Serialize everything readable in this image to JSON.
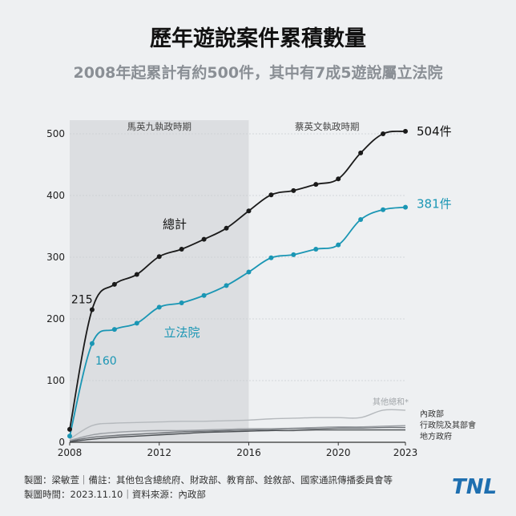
{
  "header": {
    "title": "歷年遊說案件累積數量",
    "subtitle": "2008年起累計有約500件，其中有7成5遊說屬立法院"
  },
  "footer": {
    "line1": "製圖：梁敏萱｜備註：其他包含總統府、財政部、教育部、銓敘部、國家通訊傳播委員會等",
    "line2": "製圖時間：2023.11.10｜資料來源：內政部"
  },
  "logo": {
    "text": "TNL",
    "color": "#1e6fb0"
  },
  "chart_data": {
    "type": "line",
    "x_ticks": [
      2008,
      2012,
      2016,
      2020,
      2023
    ],
    "xlim": [
      2008,
      2023
    ],
    "y_ticks": [
      0,
      100,
      200,
      300,
      400,
      500
    ],
    "ylim": [
      0,
      500
    ],
    "grid": true,
    "shaded_periods": [
      {
        "label": "馬英九執政時期",
        "x_range": [
          2008,
          2016
        ],
        "color": "#dcdee1"
      },
      {
        "label": "蔡英文執政時期",
        "x_range": [
          2016,
          2023
        ],
        "color": "#eef0f2"
      }
    ],
    "series": [
      {
        "name": "總計",
        "color": "#1a1a1a",
        "markers": true,
        "x": [
          2008,
          2009,
          2010,
          2011,
          2012,
          2013,
          2014,
          2015,
          2016,
          2017,
          2018,
          2019,
          2020,
          2021,
          2022,
          2023
        ],
        "values": [
          21,
          215,
          256,
          272,
          301,
          313,
          329,
          347,
          375,
          401,
          408,
          418,
          427,
          469,
          500,
          504
        ],
        "annotations": [
          {
            "text": "215",
            "x": 2009,
            "value": 215
          },
          {
            "text": "504件",
            "x": 2023,
            "value": 504
          }
        ]
      },
      {
        "name": "立法院",
        "color": "#1a96b4",
        "markers": true,
        "x": [
          2008,
          2009,
          2010,
          2011,
          2012,
          2013,
          2014,
          2015,
          2016,
          2017,
          2018,
          2019,
          2020,
          2021,
          2022,
          2023
        ],
        "values": [
          10,
          160,
          183,
          193,
          219,
          226,
          238,
          254,
          276,
          299,
          304,
          313,
          320,
          361,
          377,
          381
        ],
        "annotations": [
          {
            "text": "160",
            "x": 2009,
            "value": 160
          },
          {
            "text": "381件",
            "x": 2023,
            "value": 381
          }
        ]
      },
      {
        "name": "其他總和*",
        "color": "#b5b9bd",
        "markers": false,
        "x": [
          2008,
          2009,
          2010,
          2011,
          2012,
          2013,
          2014,
          2015,
          2016,
          2017,
          2018,
          2019,
          2020,
          2021,
          2022,
          2023
        ],
        "values": [
          5,
          27,
          31,
          32,
          33,
          34,
          34,
          35,
          36,
          38,
          39,
          40,
          40,
          40,
          52,
          52
        ]
      },
      {
        "name": "內政部",
        "color": "#9a9ea3",
        "markers": false,
        "x": [
          2008,
          2009,
          2010,
          2011,
          2012,
          2013,
          2014,
          2015,
          2016,
          2017,
          2018,
          2019,
          2020,
          2021,
          2022,
          2023
        ],
        "values": [
          3,
          12,
          16,
          18,
          19,
          19,
          20,
          21,
          22,
          22,
          23,
          24,
          25,
          25,
          26,
          27
        ]
      },
      {
        "name": "行政院及其部會",
        "color": "#6f7378",
        "markers": false,
        "x": [
          2008,
          2009,
          2010,
          2011,
          2012,
          2013,
          2014,
          2015,
          2016,
          2017,
          2018,
          2019,
          2020,
          2021,
          2022,
          2023
        ],
        "values": [
          2,
          8,
          11,
          13,
          15,
          17,
          18,
          19,
          20,
          21,
          22,
          22,
          23,
          23,
          24,
          24
        ]
      },
      {
        "name": "地方政府",
        "color": "#4a4e52",
        "markers": false,
        "x": [
          2008,
          2009,
          2010,
          2011,
          2012,
          2013,
          2014,
          2015,
          2016,
          2017,
          2018,
          2019,
          2020,
          2021,
          2022,
          2023
        ],
        "values": [
          1,
          5,
          8,
          10,
          12,
          14,
          16,
          17,
          18,
          19,
          19,
          20,
          20,
          20,
          20,
          20
        ]
      }
    ]
  }
}
